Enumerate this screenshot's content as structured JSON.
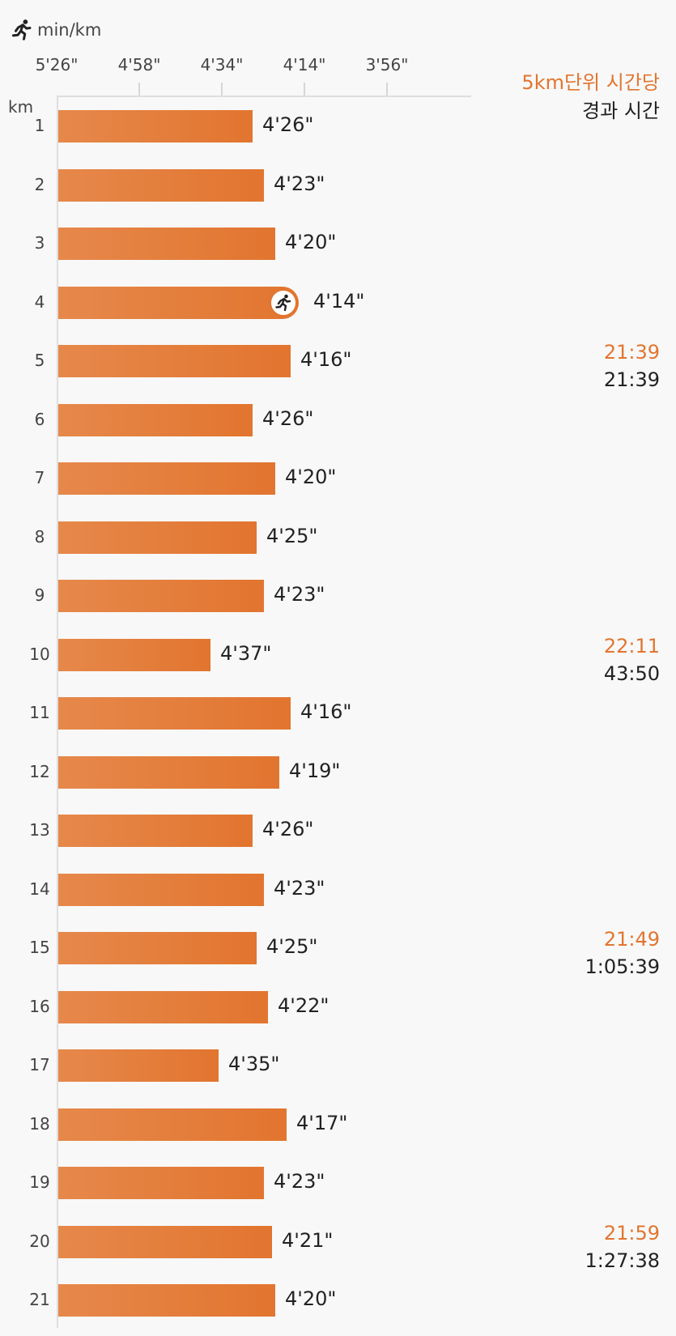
{
  "header": {
    "unit_label": "min/km",
    "unit_icon": "runner-icon",
    "right_title_line1": "5km단위 시간당",
    "right_title_line2": "경과 시간"
  },
  "chart_data": {
    "type": "bar",
    "orientation": "horizontal",
    "accent_color": "#e2752f",
    "x_axis": {
      "label": "min/km",
      "ticks": [
        "5'26\"",
        "4'58\"",
        "4'34\"",
        "4'14\"",
        "3'56\""
      ]
    },
    "y_axis": {
      "label": "km"
    },
    "categories": [
      "1",
      "2",
      "3",
      "4",
      "5",
      "6",
      "7",
      "8",
      "9",
      "10",
      "11",
      "12",
      "13",
      "14",
      "15",
      "16",
      "17",
      "18",
      "19",
      "20",
      "21"
    ],
    "pace_labels": [
      "4'26\"",
      "4'23\"",
      "4'20\"",
      "4'14\"",
      "4'16\"",
      "4'26\"",
      "4'20\"",
      "4'25\"",
      "4'23\"",
      "4'37\"",
      "4'16\"",
      "4'19\"",
      "4'26\"",
      "4'23\"",
      "4'25\"",
      "4'22\"",
      "4'35\"",
      "4'17\"",
      "4'23\"",
      "4'21\"",
      "4'20\""
    ],
    "pace_seconds": [
      266,
      263,
      260,
      254,
      256,
      266,
      260,
      265,
      263,
      277,
      256,
      259,
      266,
      263,
      265,
      262,
      275,
      257,
      263,
      261,
      260
    ],
    "fastest_marker_index": 3,
    "splits": [
      {
        "after_km": 5,
        "split": "21:39",
        "elapsed": "21:39"
      },
      {
        "after_km": 10,
        "split": "22:11",
        "elapsed": "43:50"
      },
      {
        "after_km": 15,
        "split": "21:49",
        "elapsed": "1:05:39"
      },
      {
        "after_km": 20,
        "split": "21:59",
        "elapsed": "1:27:38"
      }
    ]
  }
}
